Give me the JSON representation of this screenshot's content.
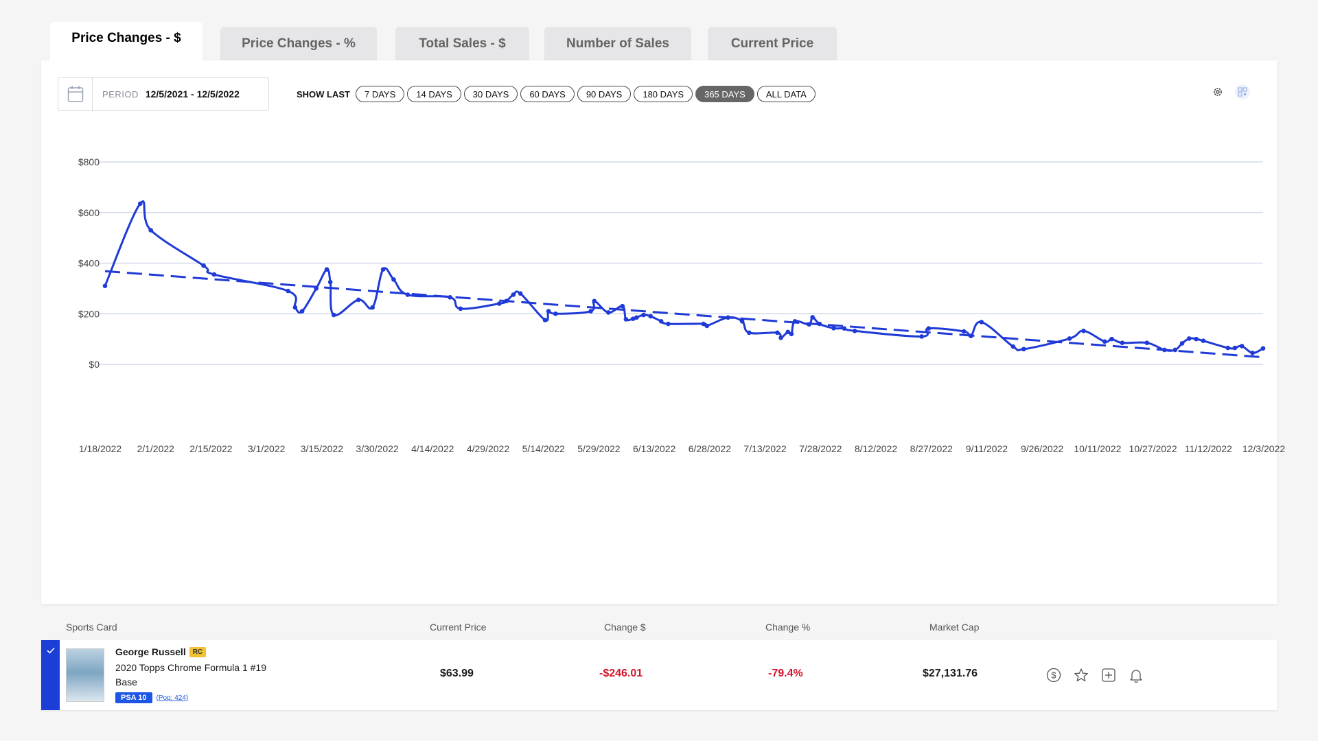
{
  "tabs": [
    {
      "label": "Price Changes - $",
      "active": true
    },
    {
      "label": "Price Changes - %",
      "active": false
    },
    {
      "label": "Total Sales - $",
      "active": false
    },
    {
      "label": "Number of Sales",
      "active": false
    },
    {
      "label": "Current Price",
      "active": false
    }
  ],
  "period": {
    "label": "PERIOD",
    "value": "12/5/2021 - 12/5/2022",
    "icon": "calendar-icon"
  },
  "show_last": {
    "label": "SHOW LAST",
    "options": [
      {
        "label": "7 DAYS",
        "active": false
      },
      {
        "label": "14 DAYS",
        "active": false
      },
      {
        "label": "30 DAYS",
        "active": false
      },
      {
        "label": "60 DAYS",
        "active": false
      },
      {
        "label": "90 DAYS",
        "active": false
      },
      {
        "label": "180 DAYS",
        "active": false
      },
      {
        "label": "365 DAYS",
        "active": true
      },
      {
        "label": "ALL DATA",
        "active": false
      }
    ]
  },
  "toolbar_icons": [
    "gear-icon",
    "qr-icon"
  ],
  "chart_data": {
    "type": "line",
    "y_ticks": [
      "$0",
      "$200",
      "$400",
      "$600",
      "$800"
    ],
    "x_ticks": [
      "1/18/2022",
      "2/1/2022",
      "2/15/2022",
      "3/1/2022",
      "3/15/2022",
      "3/30/2022",
      "4/14/2022",
      "4/29/2022",
      "5/14/2022",
      "5/29/2022",
      "6/13/2022",
      "6/28/2022",
      "7/13/2022",
      "7/28/2022",
      "8/12/2022",
      "8/27/2022",
      "9/11/2022",
      "9/26/2022",
      "10/11/2022",
      "10/27/2022",
      "11/12/2022",
      "12/3/2022"
    ],
    "ylim": [
      0,
      800
    ],
    "line_color": "#1f3ad6",
    "grid": true,
    "series": [
      {
        "values": [
          {
            "x": "2022-01-18",
            "y": 310
          },
          {
            "x": "2022-01-28",
            "y": 635
          },
          {
            "x": "2022-01-31",
            "y": 530
          },
          {
            "x": "2022-02-15",
            "y": 390
          },
          {
            "x": "2022-02-18",
            "y": 355
          },
          {
            "x": "2022-03-11",
            "y": 290
          },
          {
            "x": "2022-03-13",
            "y": 225
          },
          {
            "x": "2022-03-15",
            "y": 210
          },
          {
            "x": "2022-03-19",
            "y": 300
          },
          {
            "x": "2022-03-22",
            "y": 375
          },
          {
            "x": "2022-03-23",
            "y": 325
          },
          {
            "x": "2022-03-24",
            "y": 195
          },
          {
            "x": "2022-03-31",
            "y": 255
          },
          {
            "x": "2022-04-04",
            "y": 225
          },
          {
            "x": "2022-04-07",
            "y": 375
          },
          {
            "x": "2022-04-10",
            "y": 335
          },
          {
            "x": "2022-04-14",
            "y": 275
          },
          {
            "x": "2022-04-26",
            "y": 265
          },
          {
            "x": "2022-04-29",
            "y": 220
          },
          {
            "x": "2022-05-10",
            "y": 240
          },
          {
            "x": "2022-05-12",
            "y": 250
          },
          {
            "x": "2022-05-14",
            "y": 275
          },
          {
            "x": "2022-05-16",
            "y": 280
          },
          {
            "x": "2022-05-23",
            "y": 175
          },
          {
            "x": "2022-05-24",
            "y": 210
          },
          {
            "x": "2022-05-26",
            "y": 200
          },
          {
            "x": "2022-06-05",
            "y": 210
          },
          {
            "x": "2022-06-06",
            "y": 250
          },
          {
            "x": "2022-06-10",
            "y": 205
          },
          {
            "x": "2022-06-14",
            "y": 230
          },
          {
            "x": "2022-06-15",
            "y": 178
          },
          {
            "x": "2022-06-17",
            "y": 180
          },
          {
            "x": "2022-06-18",
            "y": 185
          },
          {
            "x": "2022-06-20",
            "y": 195
          },
          {
            "x": "2022-06-22",
            "y": 190
          },
          {
            "x": "2022-06-25",
            "y": 170
          },
          {
            "x": "2022-06-27",
            "y": 160
          },
          {
            "x": "2022-07-07",
            "y": 160
          },
          {
            "x": "2022-07-08",
            "y": 152
          },
          {
            "x": "2022-07-14",
            "y": 185
          },
          {
            "x": "2022-07-18",
            "y": 170
          },
          {
            "x": "2022-07-20",
            "y": 125
          },
          {
            "x": "2022-07-28",
            "y": 125
          },
          {
            "x": "2022-07-29",
            "y": 105
          },
          {
            "x": "2022-07-31",
            "y": 128
          },
          {
            "x": "2022-08-01",
            "y": 120
          },
          {
            "x": "2022-08-02",
            "y": 170
          },
          {
            "x": "2022-08-06",
            "y": 158
          },
          {
            "x": "2022-08-07",
            "y": 186
          },
          {
            "x": "2022-08-09",
            "y": 160
          },
          {
            "x": "2022-08-13",
            "y": 143
          },
          {
            "x": "2022-08-16",
            "y": 142
          },
          {
            "x": "2022-08-19",
            "y": 132
          },
          {
            "x": "2022-09-07",
            "y": 110
          },
          {
            "x": "2022-09-09",
            "y": 142
          },
          {
            "x": "2022-09-19",
            "y": 130
          },
          {
            "x": "2022-09-21",
            "y": 112
          },
          {
            "x": "2022-09-24",
            "y": 167
          },
          {
            "x": "2022-10-03",
            "y": 70
          },
          {
            "x": "2022-10-06",
            "y": 60
          },
          {
            "x": "2022-10-19",
            "y": 102
          },
          {
            "x": "2022-10-23",
            "y": 132
          },
          {
            "x": "2022-10-29",
            "y": 90
          },
          {
            "x": "2022-10-31",
            "y": 100
          },
          {
            "x": "2022-11-03",
            "y": 85
          },
          {
            "x": "2022-11-10",
            "y": 85
          },
          {
            "x": "2022-11-15",
            "y": 57
          },
          {
            "x": "2022-11-18",
            "y": 57
          },
          {
            "x": "2022-11-20",
            "y": 83
          },
          {
            "x": "2022-11-22",
            "y": 102
          },
          {
            "x": "2022-11-24",
            "y": 100
          },
          {
            "x": "2022-11-26",
            "y": 93
          },
          {
            "x": "2022-12-03",
            "y": 65
          },
          {
            "x": "2022-12-05",
            "y": 65
          },
          {
            "x": "2022-12-07",
            "y": 72
          },
          {
            "x": "2022-12-10",
            "y": 45
          },
          {
            "x": "2022-12-13",
            "y": 63
          }
        ]
      }
    ],
    "trendline": {
      "style": "dashed",
      "start": {
        "x": "2022-01-18",
        "y": 368
      },
      "end": {
        "x": "2022-12-13",
        "y": 28
      }
    }
  },
  "table": {
    "headers": {
      "card": "Sports Card",
      "price": "Current Price",
      "change_d": "Change $",
      "change_p": "Change %",
      "mcap": "Market Cap"
    },
    "row": {
      "selected": true,
      "player": "George Russell",
      "rc_badge": "RC",
      "set_line1": "2020 Topps Chrome Formula 1 #19",
      "set_line2": "Base",
      "grade": "PSA 10",
      "pop": "(Pop: 424)",
      "current_price": "$63.99",
      "change_dollar": "-$246.01",
      "change_percent": "-79.4%",
      "market_cap": "$27,131.76",
      "negative_color": "#d3142a",
      "action_icons": [
        "dollar-icon",
        "star-icon",
        "add-icon",
        "bell-icon"
      ]
    }
  }
}
